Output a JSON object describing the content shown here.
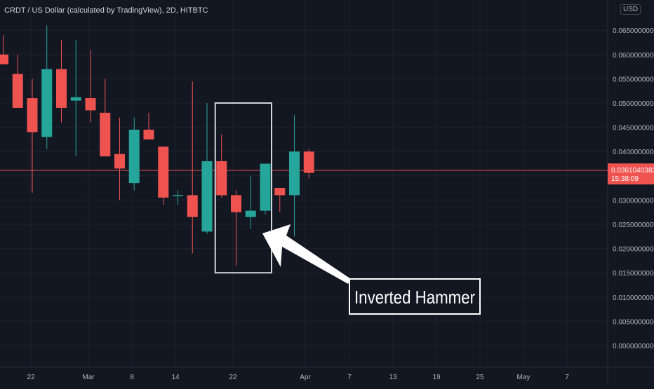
{
  "header": {
    "symbol_title": "CRDT / US Dollar (calculated by TradingView), 2D, HITBTC",
    "currency": "USD"
  },
  "colors": {
    "background": "#131722",
    "grid": "#1e222d",
    "up": "#26a69a",
    "down": "#ef5350",
    "last_price_line": "#ef5350",
    "annotation": "#ffffff",
    "axis_text": "#b2b5be"
  },
  "chart_data": {
    "type": "candlestick",
    "timeframe": "2D",
    "exchange": "HITBTC",
    "y_ticks": [
      "0.0000000000",
      "0.0050000000",
      "0.0100000000",
      "0.0150000000",
      "0.0200000000",
      "0.0250000000",
      "0.0300000000",
      "0.0350000000",
      "0.0400000000",
      "0.0450000000",
      "0.0500000000",
      "0.0550000000",
      "0.0600000000",
      "0.0650000000"
    ],
    "x_ticks": [
      "22",
      "Mar",
      "8",
      "14",
      "22",
      "Apr",
      "7",
      "13",
      "19",
      "25",
      "May",
      "7"
    ],
    "ylim": [
      -0.001,
      0.067
    ],
    "last_price": {
      "value": 0.0361040383,
      "label": "0.0361040383",
      "countdown": "15:38:09"
    },
    "candles": [
      {
        "o": 0.06,
        "h": 0.064,
        "l": 0.058,
        "c": 0.058
      },
      {
        "o": 0.056,
        "h": 0.06,
        "l": 0.049,
        "c": 0.049
      },
      {
        "o": 0.051,
        "h": 0.055,
        "l": 0.0315,
        "c": 0.044
      },
      {
        "o": 0.043,
        "h": 0.066,
        "l": 0.0405,
        "c": 0.057
      },
      {
        "o": 0.057,
        "h": 0.063,
        "l": 0.046,
        "c": 0.049
      },
      {
        "o": 0.0505,
        "h": 0.063,
        "l": 0.039,
        "c": 0.0512
      },
      {
        "o": 0.051,
        "h": 0.061,
        "l": 0.046,
        "c": 0.0485
      },
      {
        "o": 0.048,
        "h": 0.055,
        "l": 0.039,
        "c": 0.039
      },
      {
        "o": 0.0395,
        "h": 0.047,
        "l": 0.03,
        "c": 0.0365
      },
      {
        "o": 0.0335,
        "h": 0.047,
        "l": 0.032,
        "c": 0.0445
      },
      {
        "o": 0.0445,
        "h": 0.048,
        "l": 0.0425,
        "c": 0.0425
      },
      {
        "o": 0.041,
        "h": 0.041,
        "l": 0.029,
        "c": 0.0305
      },
      {
        "o": 0.031,
        "h": 0.032,
        "l": 0.029,
        "c": 0.031
      },
      {
        "o": 0.031,
        "h": 0.0545,
        "l": 0.019,
        "c": 0.0265
      },
      {
        "o": 0.0235,
        "h": 0.05,
        "l": 0.023,
        "c": 0.038
      },
      {
        "o": 0.038,
        "h": 0.0435,
        "l": 0.0305,
        "c": 0.031
      },
      {
        "o": 0.031,
        "h": 0.032,
        "l": 0.0165,
        "c": 0.0275
      },
      {
        "o": 0.0265,
        "h": 0.035,
        "l": 0.024,
        "c": 0.0278
      },
      {
        "o": 0.0278,
        "h": 0.0375,
        "l": 0.027,
        "c": 0.0375
      },
      {
        "o": 0.0325,
        "h": 0.0325,
        "l": 0.0275,
        "c": 0.031
      },
      {
        "o": 0.031,
        "h": 0.0475,
        "l": 0.0225,
        "c": 0.04
      },
      {
        "o": 0.04,
        "h": 0.0405,
        "l": 0.0345,
        "c": 0.0356
      }
    ],
    "annotation": {
      "label": "Inverted Hammer",
      "highlight_candles": [
        15,
        18
      ],
      "highlight_price_range": [
        0.015,
        0.05
      ]
    }
  }
}
